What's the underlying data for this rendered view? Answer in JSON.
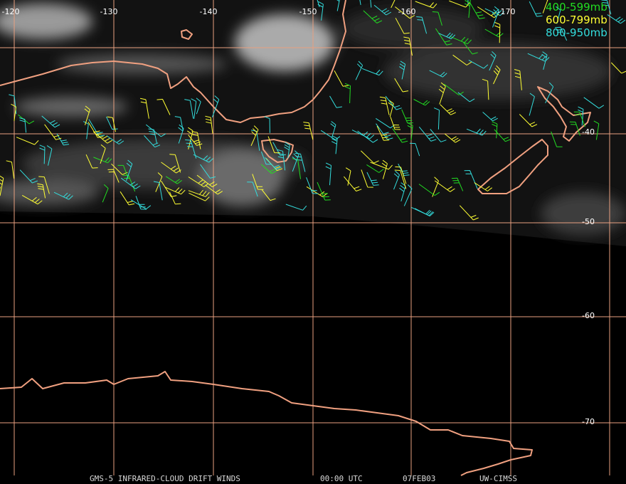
{
  "map": {
    "longitude_labels": [
      "-120",
      "-130",
      "-140",
      "-150",
      "-160",
      "-170"
    ],
    "latitude_labels": [
      "-40",
      "-50",
      "-60",
      "-70"
    ],
    "legend": [
      {
        "label": "400-599mb",
        "color": "#22dd22"
      },
      {
        "label": "600-799mb",
        "color": "#ffff33"
      },
      {
        "label": "800-950mb",
        "color": "#33dddd"
      }
    ],
    "footer": [
      "GMS-5 INFRARED-CLOUD DRIFT WINDS",
      "00:00 UTC",
      "07FEB03",
      "UW-CIMSS"
    ]
  }
}
